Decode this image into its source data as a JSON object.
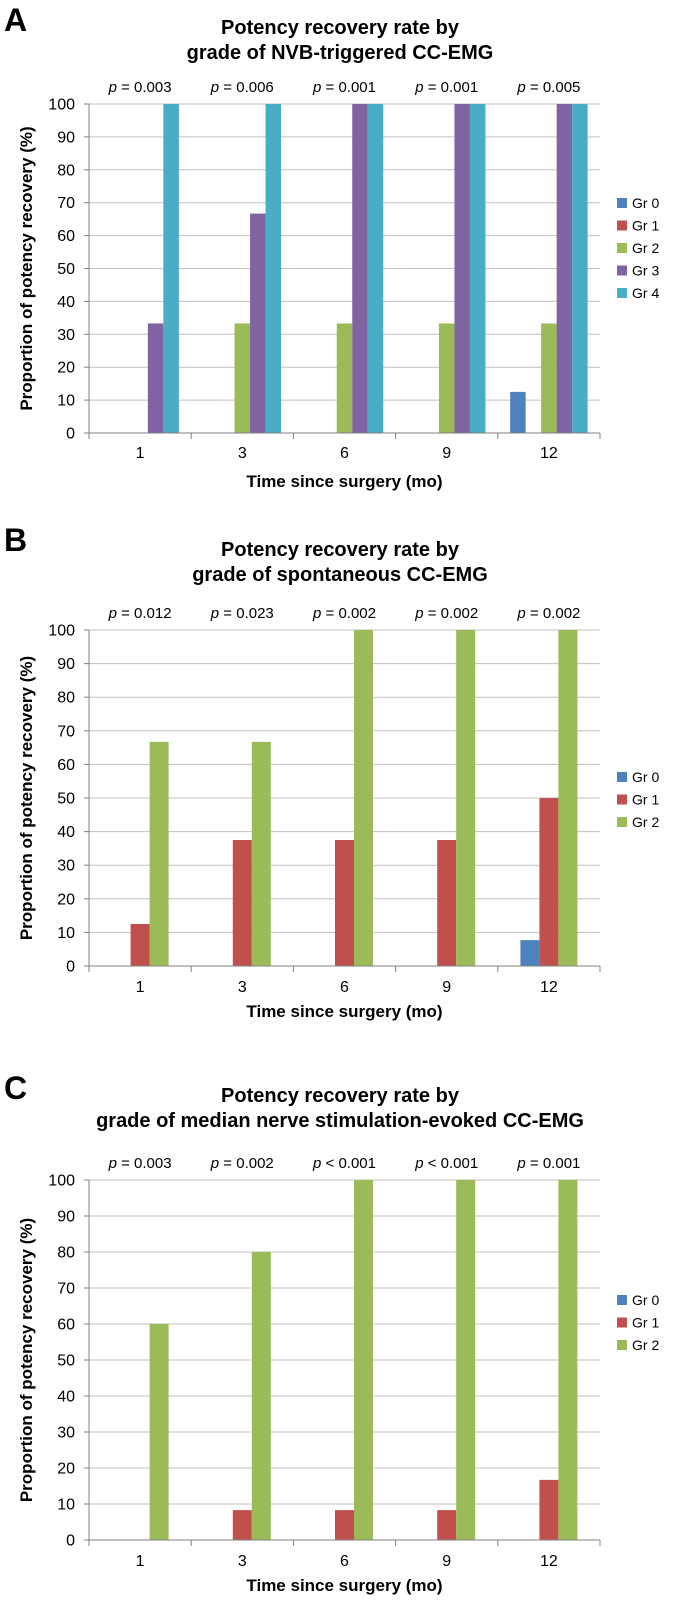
{
  "colors": {
    "Gr 0": "#4f81bd",
    "Gr 1": "#c0504d",
    "Gr 2": "#9bbb59",
    "Gr 3": "#8064a2",
    "Gr 4": "#4bacc6",
    "gridline": "#c0c0c0",
    "axis": "#808080"
  },
  "panels": [
    {
      "letter": "A",
      "title_line1": "Potency recovery rate by",
      "title_line2": "grade of NVB-triggered CC-EMG"
    },
    {
      "letter": "B",
      "title_line1": "Potency recovery rate by",
      "title_line2": "grade of spontaneous CC-EMG"
    },
    {
      "letter": "C",
      "title_line1": "Potency recovery rate by",
      "title_line2": "grade of median nerve stimulation-evoked CC-EMG"
    }
  ],
  "chart_data": [
    {
      "type": "bar",
      "title": "Potency recovery rate by grade of NVB-triggered CC-EMG",
      "xlabel": "Time since surgery (mo)",
      "ylabel": "Proportion of potency recovery (%)",
      "ylim": [
        0,
        100
      ],
      "yticks": [
        0,
        10,
        20,
        30,
        40,
        50,
        60,
        70,
        80,
        90,
        100
      ],
      "grid": true,
      "legend": "right",
      "categories": [
        "1",
        "3",
        "6",
        "9",
        "12"
      ],
      "p_values": [
        {
          "prefix": "p",
          "op": "=",
          "value": "0.003"
        },
        {
          "prefix": "p",
          "op": "=",
          "value": "0.006"
        },
        {
          "prefix": "p",
          "op": "=",
          "value": "0.001"
        },
        {
          "prefix": "p",
          "op": "=",
          "value": "0.001"
        },
        {
          "prefix": "p",
          "op": "=",
          "value": "0.005"
        }
      ],
      "series": [
        {
          "name": "Gr 0",
          "values": [
            0,
            0,
            0,
            0,
            12.5
          ]
        },
        {
          "name": "Gr 1",
          "values": [
            0,
            0,
            0,
            0,
            0
          ]
        },
        {
          "name": "Gr 2",
          "values": [
            0,
            33.3,
            33.3,
            33.3,
            33.3
          ]
        },
        {
          "name": "Gr 3",
          "values": [
            33.3,
            66.7,
            100,
            100,
            100
          ]
        },
        {
          "name": "Gr 4",
          "values": [
            100,
            100,
            100,
            100,
            100
          ]
        }
      ]
    },
    {
      "type": "bar",
      "title": "Potency recovery rate by grade of spontaneous CC-EMG",
      "xlabel": "Time since surgery (mo)",
      "ylabel": "Proportion of potency recovery (%)",
      "ylim": [
        0,
        100
      ],
      "yticks": [
        0,
        10,
        20,
        30,
        40,
        50,
        60,
        70,
        80,
        90,
        100
      ],
      "grid": true,
      "legend": "right",
      "categories": [
        "1",
        "3",
        "6",
        "9",
        "12"
      ],
      "p_values": [
        {
          "prefix": "p",
          "op": "=",
          "value": "0.012"
        },
        {
          "prefix": "p",
          "op": "=",
          "value": "0.023"
        },
        {
          "prefix": "p",
          "op": "=",
          "value": "0.002"
        },
        {
          "prefix": "p",
          "op": "=",
          "value": "0.002"
        },
        {
          "prefix": "p",
          "op": "=",
          "value": "0.002"
        }
      ],
      "series": [
        {
          "name": "Gr 0",
          "values": [
            0,
            0,
            0,
            0,
            7.7
          ]
        },
        {
          "name": "Gr 1",
          "values": [
            12.5,
            37.5,
            37.5,
            37.5,
            50
          ]
        },
        {
          "name": "Gr 2",
          "values": [
            66.7,
            66.7,
            100,
            100,
            100
          ]
        }
      ]
    },
    {
      "type": "bar",
      "title": "Potency recovery rate by grade of median nerve stimulation-evoked CC-EMG",
      "xlabel": "Time since surgery (mo)",
      "ylabel": "Proportion of potency recovery (%)",
      "ylim": [
        0,
        100
      ],
      "yticks": [
        0,
        10,
        20,
        30,
        40,
        50,
        60,
        70,
        80,
        90,
        100
      ],
      "grid": true,
      "legend": "right",
      "categories": [
        "1",
        "3",
        "6",
        "9",
        "12"
      ],
      "p_values": [
        {
          "prefix": "p",
          "op": "=",
          "value": "0.003"
        },
        {
          "prefix": "p",
          "op": "=",
          "value": "0.002"
        },
        {
          "prefix": "p",
          "op": "<",
          "value": "0.001"
        },
        {
          "prefix": "p",
          "op": "<",
          "value": "0.001"
        },
        {
          "prefix": "p",
          "op": "=",
          "value": "0.001"
        }
      ],
      "series": [
        {
          "name": "Gr 0",
          "values": [
            0,
            0,
            0,
            0,
            0
          ]
        },
        {
          "name": "Gr 1",
          "values": [
            0,
            8.3,
            8.3,
            8.3,
            16.7
          ]
        },
        {
          "name": "Gr 2",
          "values": [
            60,
            80,
            100,
            100,
            100
          ]
        }
      ]
    }
  ]
}
